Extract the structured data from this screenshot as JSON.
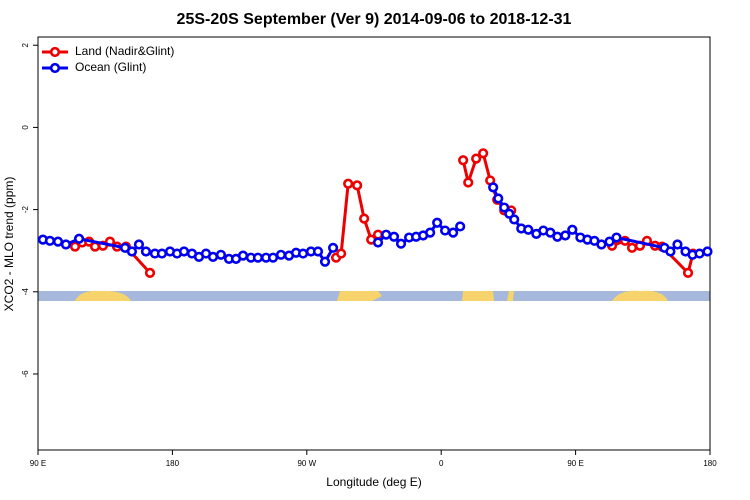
{
  "chart_data": {
    "type": "line",
    "title": "25S-20S September (Ver 9)   2014-09-06 to 2018-12-31",
    "x_label": "Longitude (deg E)",
    "y_label": "XCO2 - MLO trend (ppm)",
    "xlim": [
      90,
      540
    ],
    "xticks": [
      {
        "value": 90,
        "label": "90 E"
      },
      {
        "value": 180,
        "label": "180"
      },
      {
        "value": 270,
        "label": "90 W"
      },
      {
        "value": 360,
        "label": "0"
      },
      {
        "value": 450,
        "label": "90 E"
      },
      {
        "value": 540,
        "label": "180"
      }
    ],
    "ylim": [
      -7.85,
      2.2
    ],
    "yticks": [
      2,
      0,
      -2,
      -4,
      -6
    ],
    "legend": "top-left",
    "series": [
      {
        "name": "Land (Nadir&Glint)",
        "color": "#ee0000",
        "x": [
          114.8,
          119.5,
          124.2,
          128.2,
          133.5,
          138.2,
          142.9,
          148.9,
          165.0,
          227,
          289.6,
          293.0,
          297.7,
          303.7,
          308.4,
          313.1,
          317.7,
          346,
          374.7,
          378.1,
          383.4,
          388.1,
          392.8,
          397.5,
          402.2,
          406.9,
          440,
          474.4,
          483.1,
          487.8,
          493.1,
          497.8,
          503.2,
          507.9,
          525.3,
          528.6
        ],
        "values": [
          -2.9,
          -2.8,
          -2.78,
          -2.9,
          -2.88,
          -2.78,
          -2.9,
          -2.9,
          -3.54,
          null,
          -3.17,
          -3.07,
          -1.37,
          -1.41,
          -2.22,
          -2.73,
          -2.61,
          null,
          -0.8,
          -1.34,
          -0.76,
          -0.63,
          -1.29,
          -1.76,
          -2.02,
          -2.02,
          null,
          -2.88,
          -2.76,
          -2.93,
          -2.88,
          -2.76,
          -2.88,
          -2.9,
          -3.54,
          -3.07
        ]
      },
      {
        "name": "Ocean (Glint)",
        "color": "#0000ee",
        "x": [
          93.3,
          98.0,
          103.4,
          108.7,
          117.5,
          148.3,
          152.9,
          157.6,
          162.3,
          168.3,
          173.0,
          178.4,
          183.1,
          187.8,
          193.1,
          197.8,
          202.5,
          207.2,
          212.5,
          217.9,
          222.6,
          227.3,
          232.6,
          237.3,
          242.7,
          247.4,
          252.7,
          258.1,
          262.8,
          267.5,
          272.8,
          277.5,
          282.2,
          287.6,
          302,
          317.7,
          323.1,
          328.4,
          333.1,
          338.5,
          343.2,
          347.9,
          352.6,
          357.3,
          362.6,
          368.0,
          372.7,
          384,
          394.8,
          398.2,
          402.2,
          405.6,
          408.9,
          413.6,
          418.3,
          423.7,
          428.4,
          433.1,
          437.8,
          443.1,
          447.8,
          453.2,
          457.9,
          462.6,
          467.3,
          472.7,
          477.4,
          509.5,
          513.5,
          518.2,
          523.6,
          528.3,
          533.0,
          538.3
        ],
        "values": [
          -2.73,
          -2.76,
          -2.78,
          -2.85,
          -2.71,
          -2.93,
          -3.02,
          -2.85,
          -3.02,
          -3.07,
          -3.07,
          -3.02,
          -3.07,
          -3.02,
          -3.07,
          -3.15,
          -3.07,
          -3.15,
          -3.1,
          -3.2,
          -3.2,
          -3.12,
          -3.17,
          -3.17,
          -3.17,
          -3.17,
          -3.1,
          -3.12,
          -3.05,
          -3.07,
          -3.02,
          -3.02,
          -3.27,
          -2.93,
          null,
          -2.8,
          -2.61,
          -2.66,
          -2.83,
          -2.68,
          -2.66,
          -2.63,
          -2.56,
          -2.32,
          -2.51,
          -2.56,
          -2.41,
          null,
          -1.46,
          -1.73,
          -1.95,
          -2.1,
          -2.24,
          -2.46,
          -2.49,
          -2.59,
          -2.51,
          -2.56,
          -2.66,
          -2.63,
          -2.49,
          -2.68,
          -2.73,
          -2.76,
          -2.85,
          -2.78,
          -2.68,
          -2.93,
          -3.02,
          -2.85,
          -3.02,
          -3.1,
          -3.07,
          -3.02
        ]
      }
    ]
  }
}
